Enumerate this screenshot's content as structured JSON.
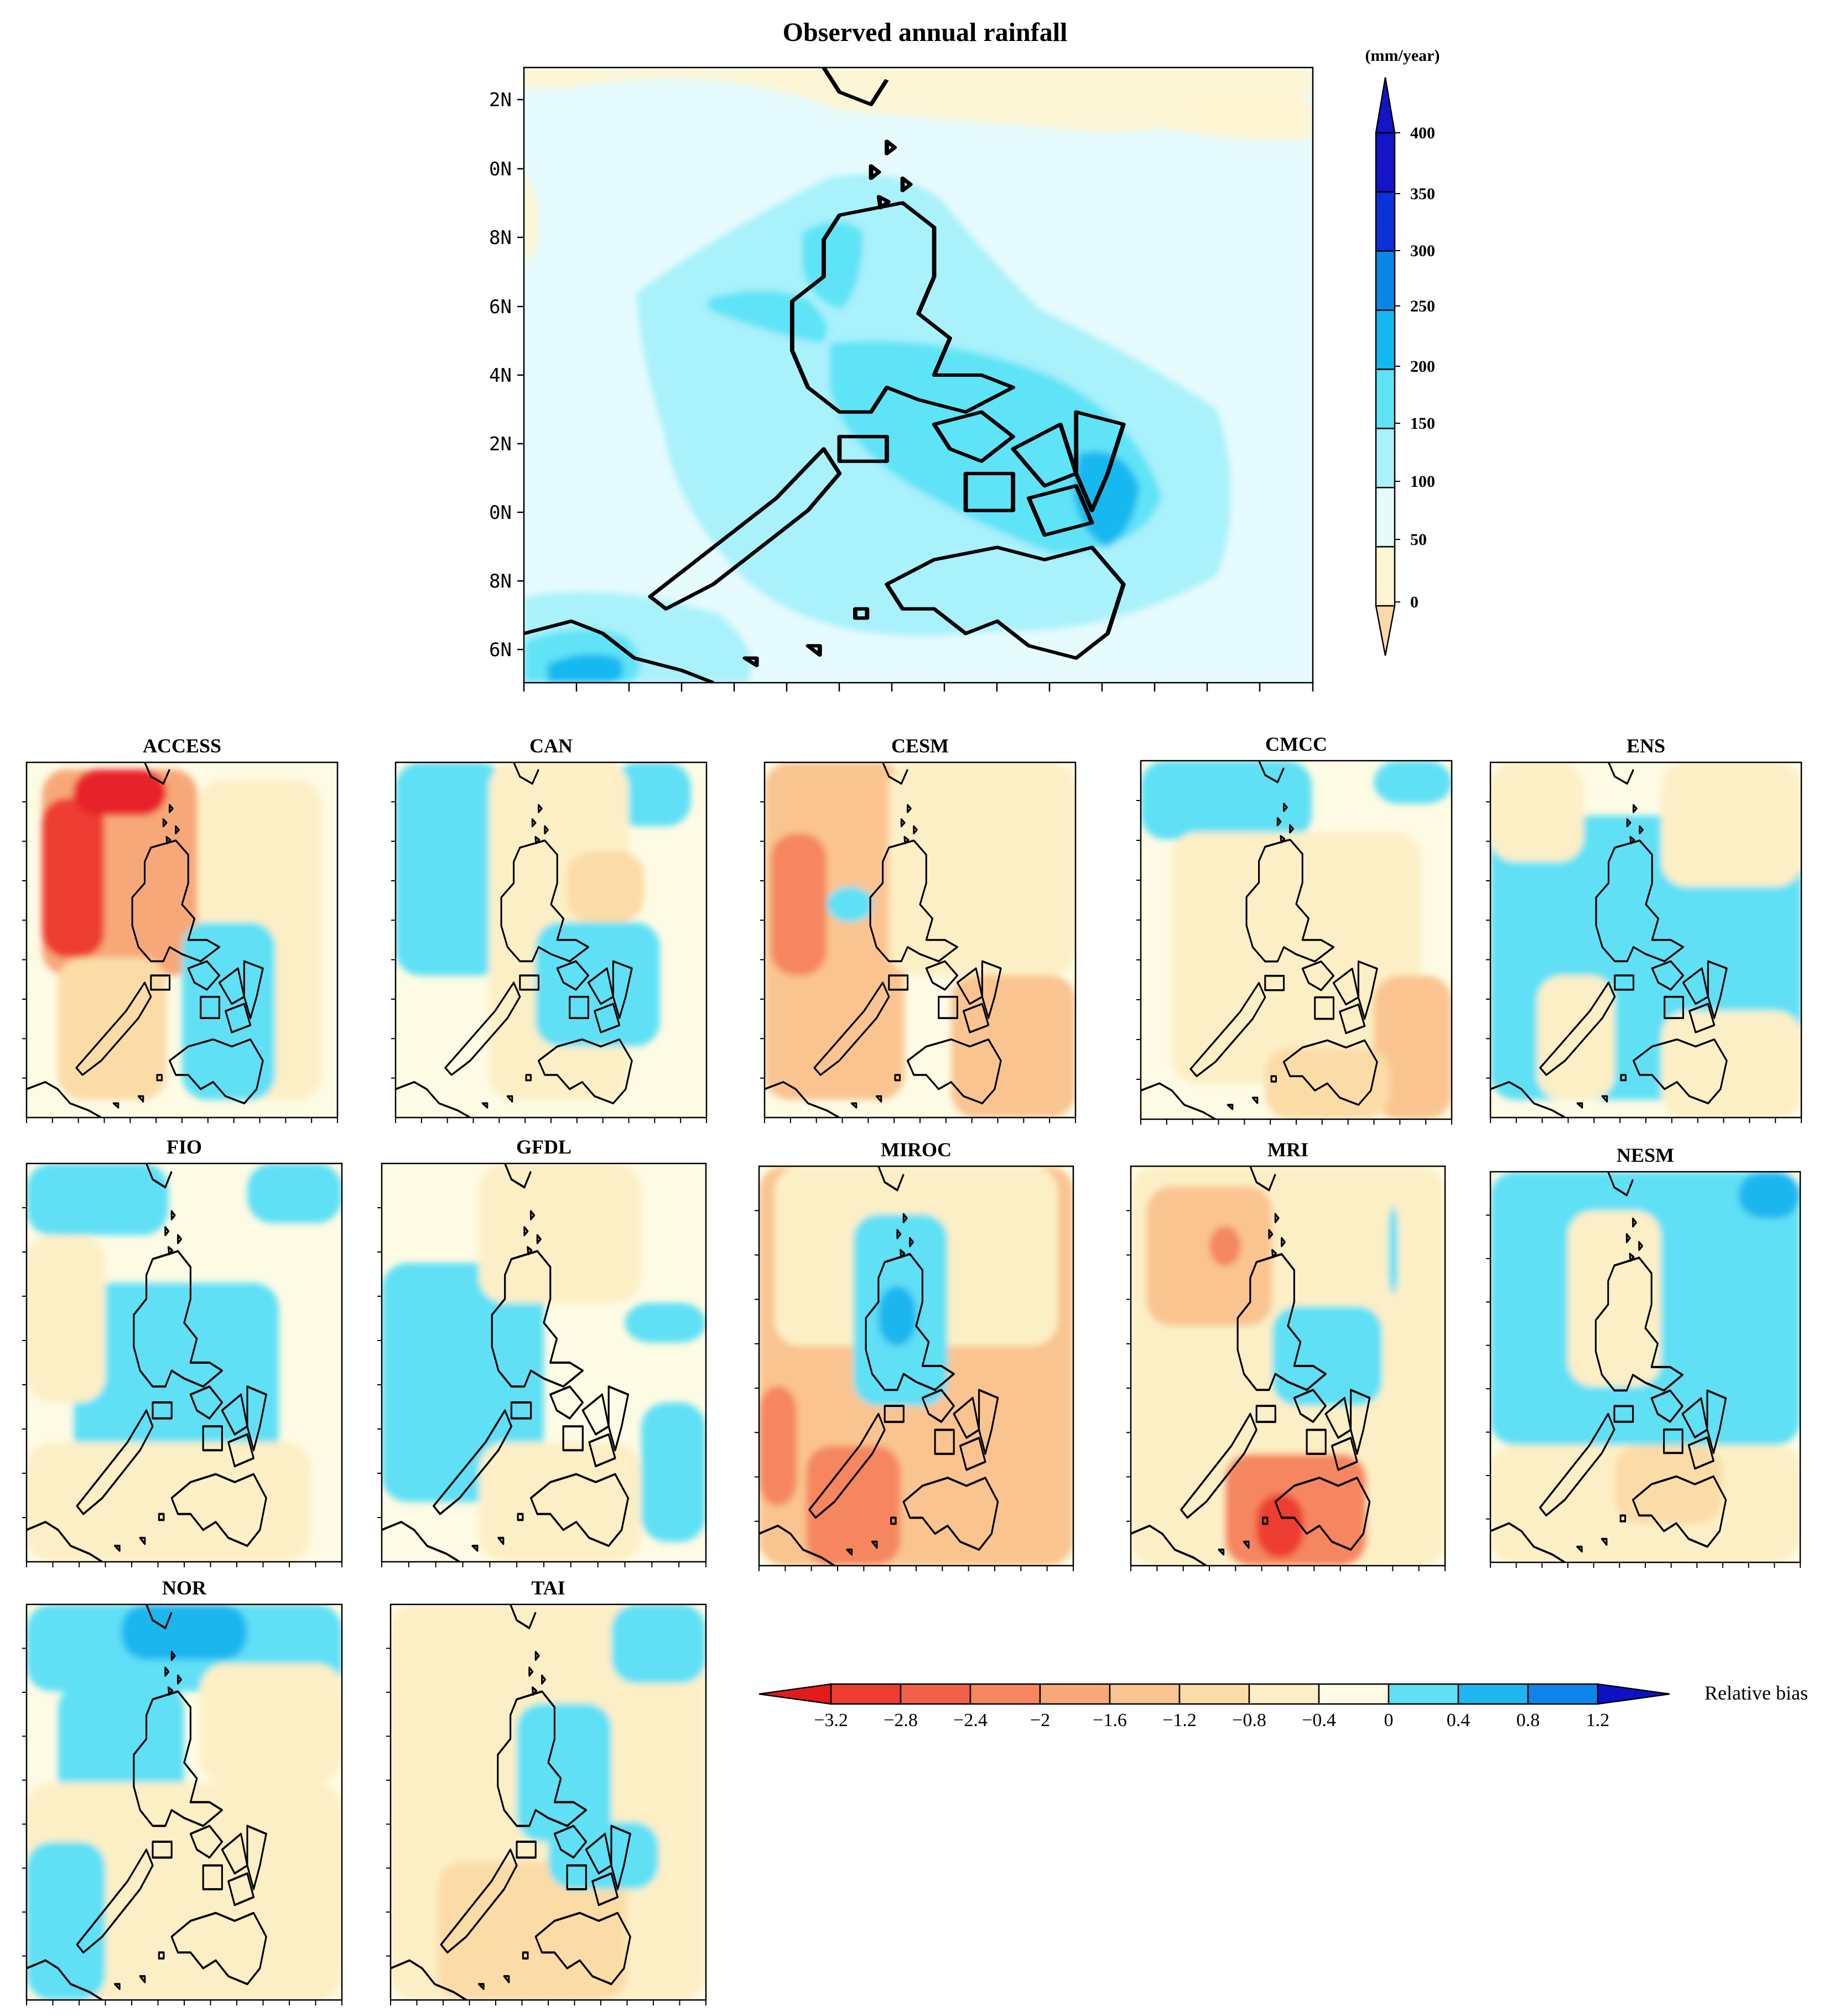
{
  "main_map": {
    "title": "Observed annual rainfall",
    "lat_labels": [
      "2N",
      "0N",
      "8N",
      "6N",
      "4N",
      "2N",
      "0N",
      "8N",
      "6N"
    ]
  },
  "rain_colorbar": {
    "unit": "(mm/year)",
    "ticks": [
      "400",
      "350",
      "300",
      "250",
      "200",
      "150",
      "100",
      "50",
      "0"
    ],
    "colors": [
      "#f9d9a8",
      "#fef5d2",
      "#e6fbfd",
      "#a9f1fb",
      "#5ee3f6",
      "#12b8f0",
      "#0a86e6",
      "#0a32d8",
      "#1414c8"
    ]
  },
  "panels": [
    {
      "label": "ACCESS"
    },
    {
      "label": "CAN"
    },
    {
      "label": "CESM"
    },
    {
      "label": "CMCC"
    },
    {
      "label": "ENS"
    },
    {
      "label": "FIO"
    },
    {
      "label": "GFDL"
    },
    {
      "label": "MIROC"
    },
    {
      "label": "MRI"
    },
    {
      "label": "NESM"
    },
    {
      "label": "NOR"
    },
    {
      "label": "TAI"
    }
  ],
  "bias_colorbar": {
    "title": "Relative bias",
    "ticks": [
      "−3.2",
      "−2.8",
      "−2.4",
      "−2",
      "−1.6",
      "−1.2",
      "−0.8",
      "−0.4",
      "0",
      "0.4",
      "0.8",
      "1.2"
    ],
    "colors": [
      "#e8202b",
      "#ee3d33",
      "#f2624a",
      "#f5865f",
      "#f7a878",
      "#f9c48f",
      "#fbdca7",
      "#fdefc5",
      "#fefbe4",
      "#5fe0f5",
      "#1fb6ef",
      "#0c86e8",
      "#1010c8"
    ],
    "low_arrow_color": "#e41a1c"
  }
}
